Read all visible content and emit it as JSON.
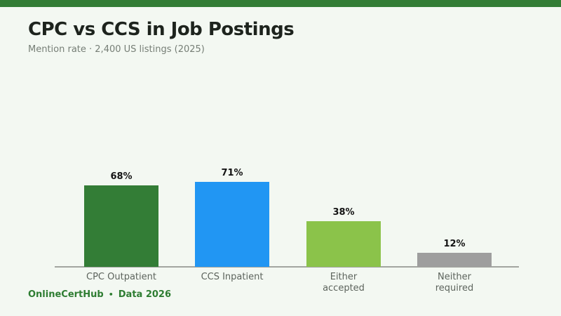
{
  "page": {
    "background_color": "#f3f8f2",
    "top_band_color": "#337d36"
  },
  "header": {
    "title": "CPC vs CCS in Job Postings",
    "subtitle": "Mention rate · 2,400 US listings (2025)"
  },
  "footer": {
    "brand": "OnlineCertHub",
    "separator": "•",
    "note": "Data 2026",
    "color": "#2e7d32"
  },
  "chart_data": {
    "type": "bar",
    "title": "CPC vs CCS in Job Postings",
    "subtitle": "Mention rate · 2,400 US listings (2025)",
    "categories": [
      "CPC Outpatient",
      "CCS Inpatient",
      "Either accepted",
      "Neither required"
    ],
    "category_lines": [
      [
        "CPC Outpatient"
      ],
      [
        "CCS Inpatient"
      ],
      [
        "Either",
        "accepted"
      ],
      [
        "Neither",
        "required"
      ]
    ],
    "values": [
      68,
      71,
      38,
      12
    ],
    "value_labels": [
      "68%",
      "71%",
      "38%",
      "12%"
    ],
    "colors": [
      "#337d36",
      "#2196f3",
      "#8bc34a",
      "#9e9e9e"
    ],
    "unit": "%",
    "ylim": [
      0,
      100
    ],
    "grid": false,
    "legend": "none",
    "axis_color": "#a2a5a0"
  }
}
